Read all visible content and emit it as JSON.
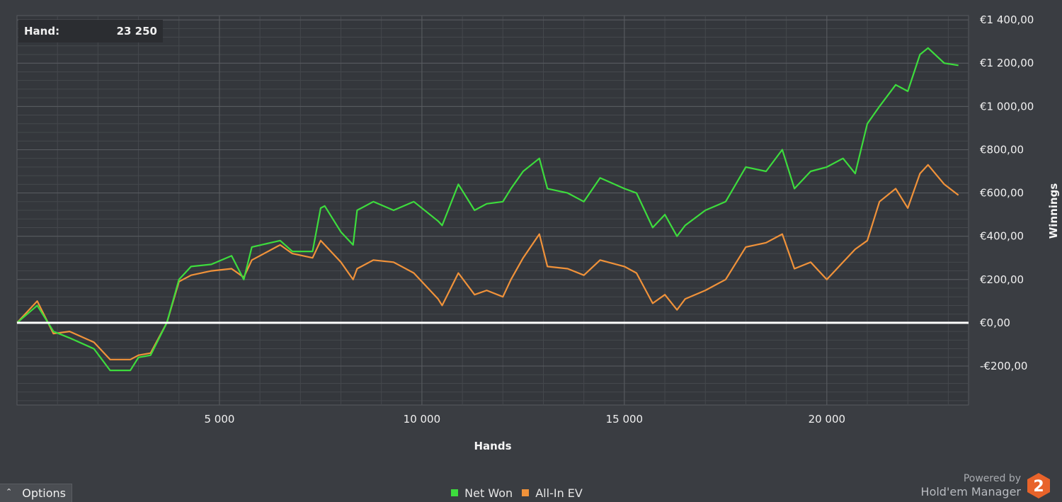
{
  "hand_box": {
    "label": "Hand:",
    "value": "23 250"
  },
  "options": {
    "label": "Options",
    "chevron_icon": "chevron-up-icon"
  },
  "branding": {
    "powered_by": "Powered by",
    "product": "Hold'em Manager",
    "logo_text": "2",
    "logo_color": "#e8632a"
  },
  "legend": [
    {
      "label": "Net Won",
      "color": "#3ddc3d"
    },
    {
      "label": "All-In EV",
      "color": "#f0923a"
    }
  ],
  "chart_data": {
    "type": "line",
    "xlabel": "Hands",
    "ylabel": "Winnings",
    "xlim": [
      0,
      23500
    ],
    "ylim": [
      -380,
      1420
    ],
    "grid": true,
    "legend_position": "bottom-center",
    "x_ticks": [
      {
        "value": 5000,
        "label": "5 000"
      },
      {
        "value": 10000,
        "label": "10 000"
      },
      {
        "value": 15000,
        "label": "15 000"
      },
      {
        "value": 20000,
        "label": "20 000"
      }
    ],
    "y_ticks": [
      {
        "value": 1400,
        "label": "€1 400,00"
      },
      {
        "value": 1200,
        "label": "€1 200,00"
      },
      {
        "value": 1000,
        "label": "€1 000,00"
      },
      {
        "value": 800,
        "label": "€800,00"
      },
      {
        "value": 600,
        "label": "€600,00"
      },
      {
        "value": 400,
        "label": "€400,00"
      },
      {
        "value": 200,
        "label": "€200,00"
      },
      {
        "value": 0,
        "label": "€0,00"
      },
      {
        "value": -200,
        "label": "-€200,00"
      }
    ],
    "zero_line_color": "#ffffff",
    "series": [
      {
        "name": "Net Won",
        "color": "#3ddc3d",
        "x": [
          0,
          500,
          900,
          1300,
          1900,
          2300,
          2800,
          3000,
          3300,
          3700,
          4000,
          4300,
          4800,
          5300,
          5600,
          5800,
          6500,
          6800,
          7300,
          7500,
          7600,
          8000,
          8300,
          8400,
          8800,
          9300,
          9800,
          10400,
          10500,
          10900,
          11300,
          11600,
          12000,
          12200,
          12500,
          12900,
          13100,
          13600,
          14000,
          14400,
          15000,
          15300,
          15700,
          16000,
          16300,
          16500,
          17000,
          17500,
          18000,
          18500,
          18900,
          19200,
          19600,
          20000,
          20400,
          20700,
          21000,
          21300,
          21700,
          22000,
          22300,
          22500,
          22900,
          23250
        ],
        "y": [
          0,
          80,
          -40,
          -70,
          -120,
          -220,
          -220,
          -160,
          -150,
          0,
          200,
          260,
          270,
          310,
          200,
          350,
          380,
          330,
          330,
          530,
          540,
          420,
          360,
          520,
          560,
          520,
          560,
          470,
          450,
          640,
          520,
          550,
          560,
          620,
          700,
          760,
          620,
          600,
          560,
          670,
          620,
          600,
          440,
          500,
          400,
          450,
          520,
          560,
          720,
          700,
          800,
          620,
          700,
          720,
          760,
          690,
          920,
          1000,
          1100,
          1070,
          1240,
          1270,
          1200,
          1190
        ]
      },
      {
        "name": "All-In EV",
        "color": "#f0923a",
        "x": [
          0,
          500,
          900,
          1300,
          1900,
          2300,
          2800,
          3000,
          3300,
          3700,
          4000,
          4300,
          4800,
          5300,
          5600,
          5800,
          6500,
          6800,
          7300,
          7500,
          7600,
          8000,
          8300,
          8400,
          8800,
          9300,
          9800,
          10400,
          10500,
          10900,
          11300,
          11600,
          12000,
          12200,
          12500,
          12900,
          13100,
          13600,
          14000,
          14400,
          15000,
          15300,
          15700,
          16000,
          16300,
          16500,
          17000,
          17500,
          18000,
          18500,
          18900,
          19200,
          19600,
          20000,
          20400,
          20700,
          21000,
          21300,
          21700,
          22000,
          22300,
          22500,
          22900,
          23250
        ],
        "y": [
          0,
          100,
          -50,
          -40,
          -90,
          -170,
          -170,
          -150,
          -140,
          0,
          190,
          220,
          240,
          250,
          210,
          290,
          360,
          320,
          300,
          380,
          360,
          280,
          200,
          250,
          290,
          280,
          230,
          110,
          80,
          230,
          130,
          150,
          120,
          200,
          300,
          410,
          260,
          250,
          220,
          290,
          260,
          230,
          90,
          130,
          60,
          110,
          150,
          200,
          350,
          370,
          410,
          250,
          280,
          200,
          280,
          340,
          380,
          560,
          620,
          530,
          690,
          730,
          640,
          590
        ]
      }
    ]
  }
}
